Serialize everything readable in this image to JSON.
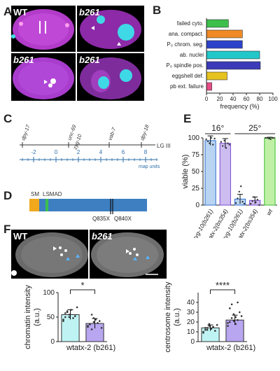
{
  "panels": {
    "A": "A",
    "B": "B",
    "C": "C",
    "D": "D",
    "E": "E",
    "F": "F"
  },
  "panelA": {
    "labels": [
      "WT",
      "b261",
      "b261",
      "b261"
    ]
  },
  "chart_b": {
    "type": "bar",
    "orientation": "horizontal",
    "categories": [
      "failed cyto.",
      "ana. compact.",
      "P₀ chrom. seg.",
      "ab. nuclei",
      "P₀ spindle pos.",
      "eggshell def.",
      "pb ext. failure"
    ],
    "values": [
      33,
      54,
      54,
      80,
      81,
      31,
      8
    ],
    "colors": [
      "#3dbf4b",
      "#f08a24",
      "#2c43c9",
      "#22c7c9",
      "#3b3ab8",
      "#e6c21f",
      "#e64b86"
    ],
    "xlabel": "frequency (%)",
    "xlim": [
      0,
      100
    ],
    "xticks": [
      0,
      20,
      40,
      60,
      80,
      100
    ]
  },
  "panelC": {
    "genes": [
      "dpy-17",
      "unc-69",
      "zyg-10",
      "vab-7",
      "dpy-18"
    ],
    "chromosome": "LG III",
    "ticks": [
      "-2",
      "0",
      "2",
      "4",
      "6",
      "8"
    ],
    "unit": "map units"
  },
  "panelD": {
    "domains": [
      "SM",
      "LSMAD"
    ],
    "mutations": [
      "Q835X",
      "Q840X"
    ]
  },
  "chart_e": {
    "type": "bar",
    "categories": [
      "zyg-10(b261)",
      "atx-2(bs354)",
      "zyg-10(b261)",
      "atx-2(bs354)",
      "wt"
    ],
    "values": [
      96,
      92,
      9,
      7,
      100
    ],
    "errors": [
      7,
      7,
      7,
      5,
      1
    ],
    "colors": [
      "#b8d4f2",
      "#cdbcf0",
      "#b8d4f2",
      "#cdbcf0",
      "#bff0a6"
    ],
    "edge_colors": [
      "#2f6fd0",
      "#7a4ad0",
      "#2f6fd0",
      "#7a4ad0",
      "#3bbf2e"
    ],
    "groups": [
      {
        "label": "16°",
        "span": [
          0,
          1
        ]
      },
      {
        "label": "25°",
        "span": [
          2,
          4
        ]
      }
    ],
    "ylabel": "viable (%)",
    "ylim": [
      0,
      100
    ],
    "yticks": [
      0,
      25,
      50,
      75,
      100
    ]
  },
  "panelF": {
    "labels": [
      "WT",
      "b261"
    ]
  },
  "chart_f1": {
    "type": "bar",
    "categories": [
      "wt",
      "atx-2 (b261)"
    ],
    "values": [
      55,
      37
    ],
    "errors": [
      10,
      10
    ],
    "colors": [
      "#bff3f3",
      "#b8a6f0"
    ],
    "ylabel": "chromatin intensity (a.u.)",
    "ylim": [
      0,
      100
    ],
    "yticks": [
      0,
      50,
      100
    ],
    "significance": "*"
  },
  "chart_f2": {
    "type": "bar",
    "categories": [
      "wt",
      "atx-2 (b261)"
    ],
    "values": [
      14,
      22
    ],
    "errors": [
      3,
      5
    ],
    "colors": [
      "#bff3f3",
      "#b8a6f0"
    ],
    "ylabel": "centrosome intensity (a.u.)",
    "ylim": [
      0,
      50
    ],
    "yticks": [
      0,
      10,
      20,
      30,
      40
    ],
    "significance": "****"
  }
}
